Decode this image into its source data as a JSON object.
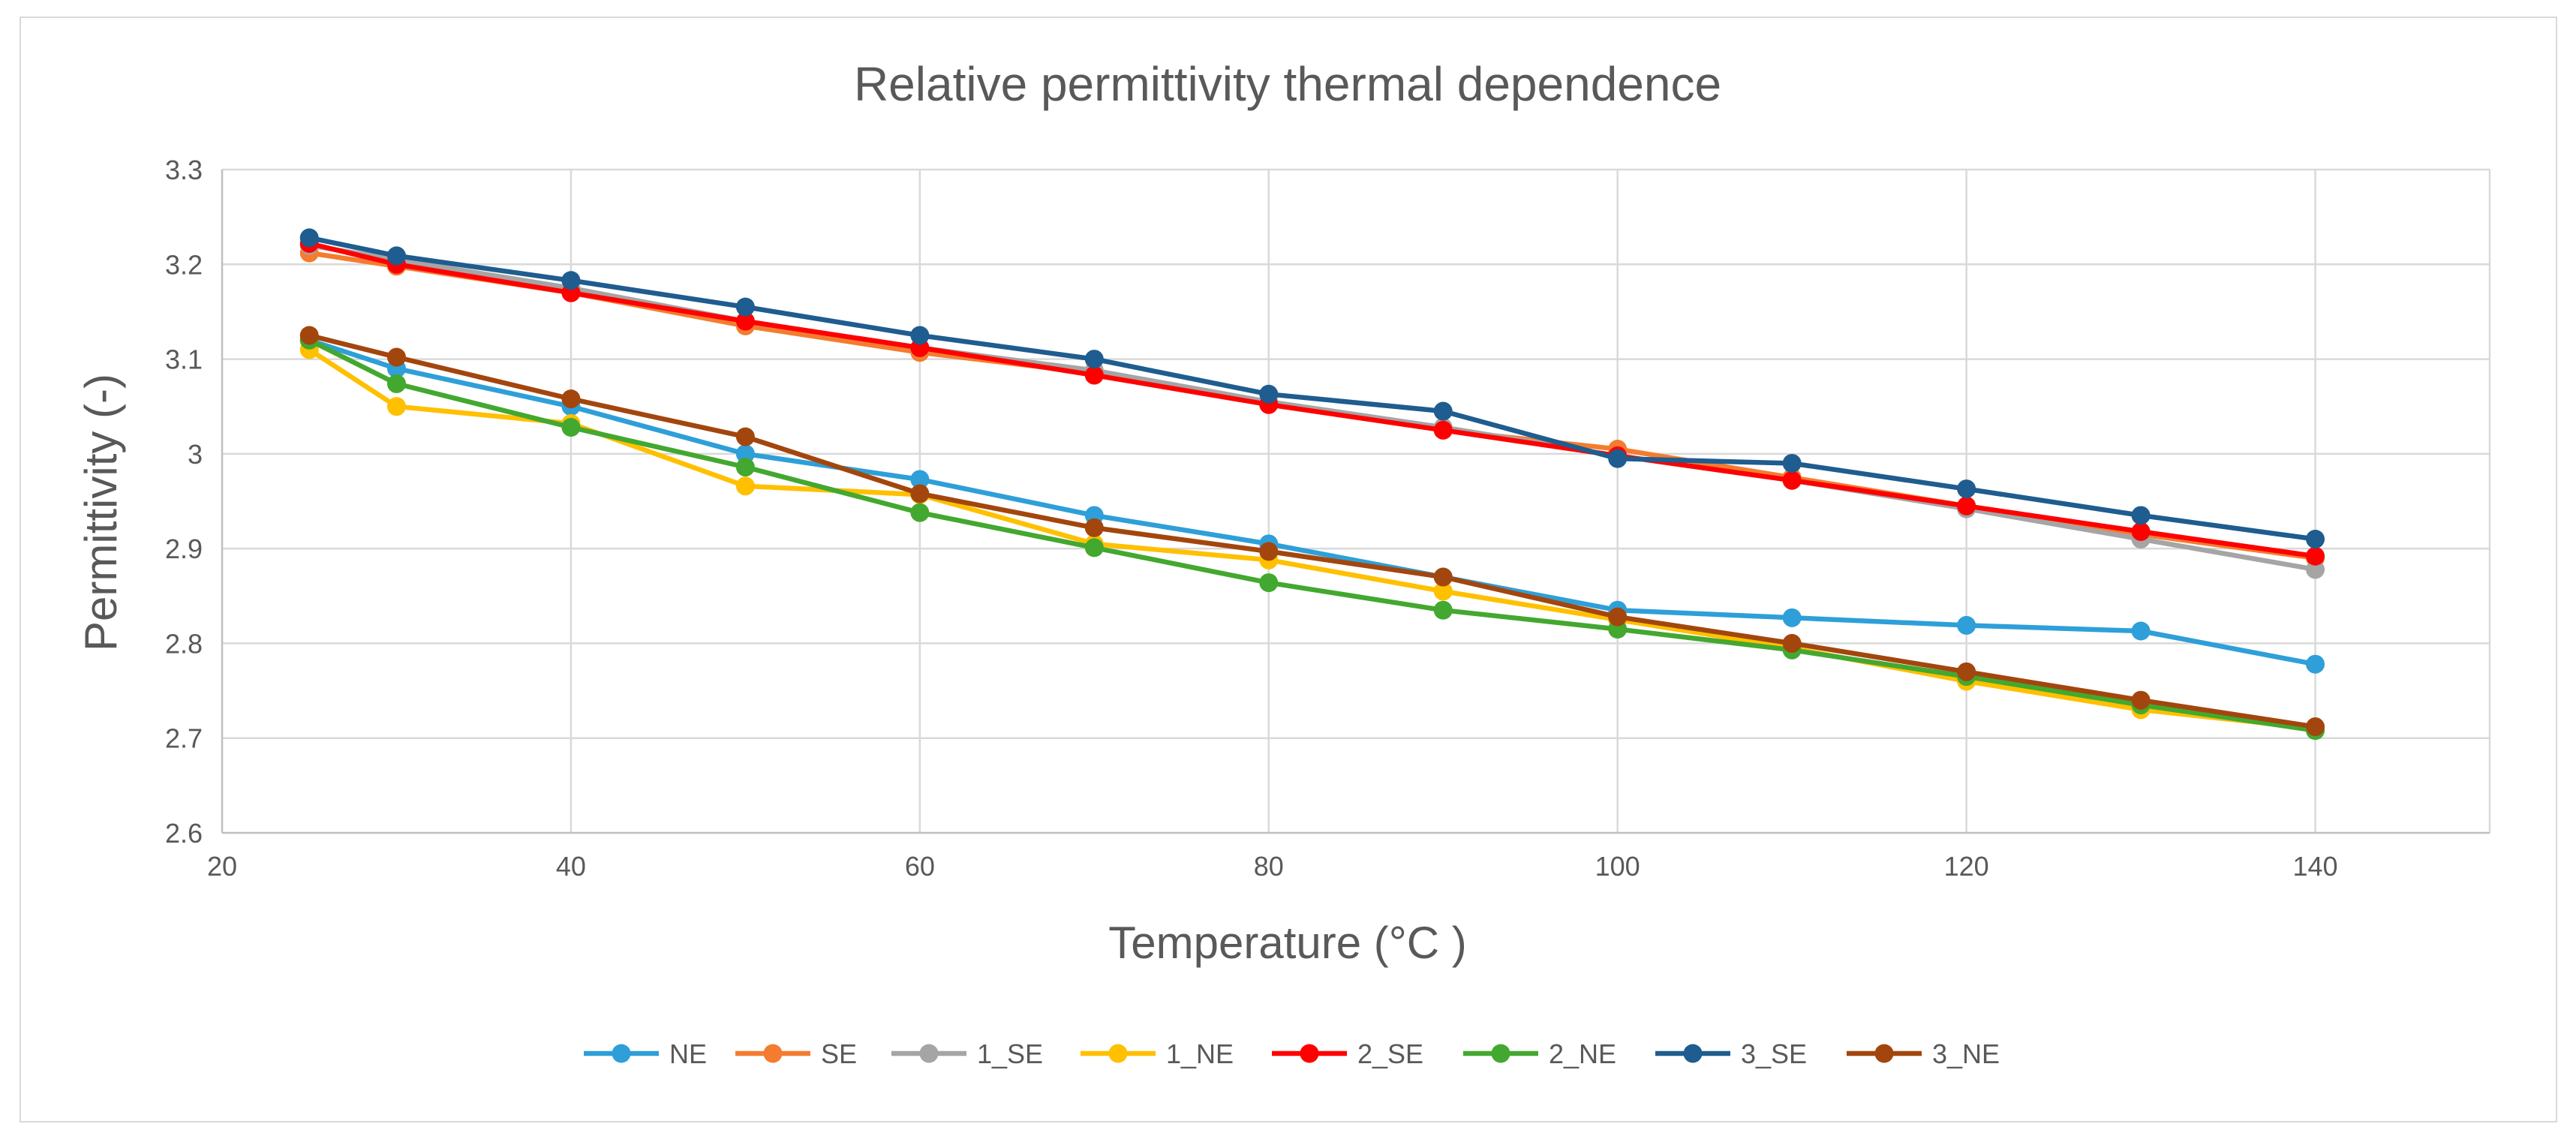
{
  "chart_data": {
    "type": "line",
    "title": "Relative permittivity thermal dependence",
    "xlabel": "Temperature (°C )",
    "ylabel": "Permittivity  (-)",
    "xlim": [
      20,
      150
    ],
    "ylim": [
      2.6,
      3.3
    ],
    "xticks": [
      20,
      40,
      60,
      80,
      100,
      120,
      140
    ],
    "xtick_labels": [
      "20",
      "40",
      "60",
      "80",
      "100",
      "120",
      "140"
    ],
    "yticks": [
      2.6,
      2.7,
      2.8,
      2.9,
      3.0,
      3.1,
      3.2,
      3.3
    ],
    "ytick_labels": [
      "2.6",
      "2.7",
      "2.8",
      "2.9",
      "3",
      "3.1",
      "3.2",
      "3.3"
    ],
    "grid": true,
    "legend_position": "bottom",
    "x": [
      25,
      30,
      40,
      50,
      60,
      70,
      80,
      90,
      100,
      110,
      120,
      130,
      140
    ],
    "series": [
      {
        "name": "NE",
        "color": "#2E9FD8",
        "values": [
          3.12,
          3.09,
          3.05,
          3.0,
          2.973,
          2.935,
          2.905,
          2.87,
          2.835,
          2.827,
          2.819,
          2.813,
          2.778
        ]
      },
      {
        "name": "SE",
        "color": "#F47C30",
        "values": [
          3.212,
          3.198,
          3.17,
          3.135,
          3.107,
          3.085,
          3.052,
          3.025,
          3.005,
          2.975,
          2.945,
          2.915,
          2.89
        ]
      },
      {
        "name": "1_SE",
        "color": "#A5A5A5",
        "values": [
          3.22,
          3.205,
          3.175,
          3.14,
          3.112,
          3.088,
          3.055,
          3.028,
          2.998,
          2.972,
          2.942,
          2.91,
          2.878
        ]
      },
      {
        "name": "1_NE",
        "color": "#FFC000",
        "values": [
          3.11,
          3.05,
          3.032,
          2.966,
          2.957,
          2.905,
          2.888,
          2.855,
          2.825,
          2.795,
          2.76,
          2.73,
          2.71
        ]
      },
      {
        "name": "2_SE",
        "color": "#FF0000",
        "values": [
          3.222,
          3.2,
          3.17,
          3.14,
          3.112,
          3.083,
          3.052,
          3.025,
          2.998,
          2.972,
          2.945,
          2.918,
          2.892
        ]
      },
      {
        "name": "2_NE",
        "color": "#43A82F",
        "values": [
          3.12,
          3.074,
          3.028,
          2.986,
          2.938,
          2.901,
          2.864,
          2.835,
          2.815,
          2.793,
          2.765,
          2.735,
          2.708
        ]
      },
      {
        "name": "3_SE",
        "color": "#1F5C8F",
        "values": [
          3.228,
          3.209,
          3.183,
          3.155,
          3.125,
          3.1,
          3.063,
          3.045,
          2.995,
          2.99,
          2.963,
          2.935,
          2.91
        ]
      },
      {
        "name": "3_NE",
        "color": "#A3460D",
        "values": [
          3.125,
          3.102,
          3.058,
          3.018,
          2.958,
          2.922,
          2.897,
          2.87,
          2.828,
          2.8,
          2.77,
          2.74,
          2.712
        ]
      }
    ]
  }
}
